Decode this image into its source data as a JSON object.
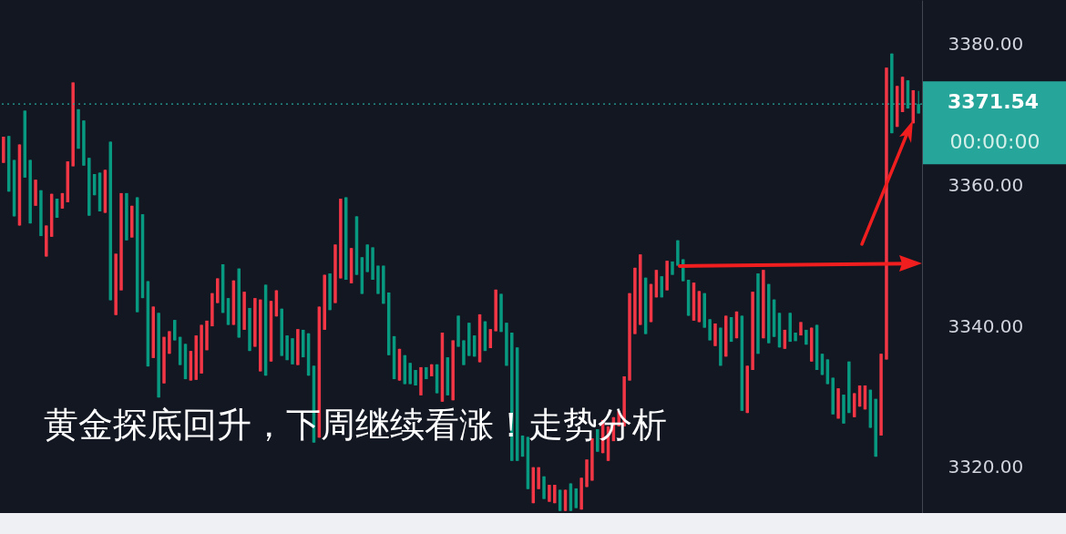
{
  "chart_data": {
    "type": "candlestick",
    "annotations": [
      "黄金探底回升，下周继续看涨！走势分析",
      "00:00:00"
    ],
    "ylim": [
      3313.5,
      3386.3
    ],
    "yticks": [
      {
        "value": 3320,
        "label": "3320.00"
      },
      {
        "value": 3340,
        "label": "3340.00"
      },
      {
        "value": 3360,
        "label": "3360.00"
      },
      {
        "value": 3380,
        "label": "3380.00"
      }
    ],
    "tick_labels": "y",
    "ref_lines": [
      {
        "axis": "y",
        "value": 3371.54,
        "label": "3371.54",
        "color": "#26a69a",
        "line_style": "dotted"
      }
    ],
    "categories": [
      null,
      null,
      null,
      null,
      null,
      null,
      null,
      null,
      null,
      null,
      null,
      null,
      null,
      null,
      null,
      null,
      null,
      null,
      null,
      null,
      null,
      null,
      null,
      null,
      null,
      null,
      null,
      null,
      null,
      null,
      null,
      null,
      null,
      null,
      null,
      null,
      null,
      null,
      null,
      null,
      null,
      null,
      null,
      null,
      null,
      null,
      null,
      null,
      null,
      null,
      null,
      null,
      null,
      null,
      null,
      null,
      null,
      null,
      null,
      null,
      null,
      null,
      null,
      null,
      null,
      null,
      null,
      null,
      null,
      null,
      null,
      null,
      null,
      null,
      null,
      null,
      null,
      null,
      null,
      null,
      null,
      null,
      null,
      null,
      null,
      null,
      null,
      null,
      null,
      null,
      null,
      null,
      null,
      null,
      null,
      null,
      null,
      null,
      null,
      null,
      null,
      null,
      null,
      null,
      null,
      null,
      null,
      null,
      null,
      null,
      null,
      null,
      null,
      null,
      null,
      null,
      null,
      null,
      null,
      null,
      null,
      null,
      null,
      null,
      null,
      null,
      null,
      null,
      null,
      null,
      null,
      null,
      null,
      null,
      null,
      null,
      null,
      null,
      null,
      null,
      null,
      null,
      null,
      null,
      null,
      null,
      null,
      null,
      null,
      null,
      null,
      null,
      null,
      null,
      null,
      null,
      null,
      null,
      null,
      null,
      null,
      null,
      null,
      null,
      null,
      null,
      null,
      null,
      null,
      null,
      null,
      null
    ],
    "ohlc": [
      [
        3366.9,
        3366.9,
        3363.2,
        3363.2
      ],
      [
        3359.1,
        3367.0,
        3359.1,
        3367.0
      ],
      [
        3355.6,
        3363.6,
        3355.6,
        3363.6
      ],
      [
        3365.8,
        3365.8,
        3354.3,
        3354.3
      ],
      [
        3361.1,
        3370.6,
        3361.1,
        3370.6
      ],
      [
        3354.6,
        3363.6,
        3354.6,
        3363.6
      ],
      [
        3360.8,
        3360.8,
        3357.1,
        3357.1
      ],
      [
        3352.8,
        3359.3,
        3352.8,
        3359.3
      ],
      [
        3354.3,
        3354.3,
        3349.9,
        3349.9
      ],
      [
        3358.8,
        3358.8,
        3352.7,
        3352.7
      ],
      [
        3355.4,
        3358.1,
        3355.4,
        3358.1
      ],
      [
        3358.9,
        3358.9,
        3356.7,
        3356.7
      ],
      [
        3363.4,
        3363.4,
        3357.6,
        3357.6
      ],
      [
        3374.6,
        3374.6,
        3362.7,
        3362.7
      ],
      [
        3365.2,
        3370.8,
        3365.2,
        3370.8
      ],
      [
        3362.8,
        3369.2,
        3362.8,
        3369.2
      ],
      [
        3355.7,
        3363.9,
        3355.7,
        3363.9
      ],
      [
        3358.6,
        3361.6,
        3358.6,
        3361.6
      ],
      [
        3356.3,
        3361.8,
        3356.3,
        3361.8
      ],
      [
        3362.2,
        3362.2,
        3356.1,
        3356.1
      ],
      [
        3343.7,
        3366.2,
        3343.7,
        3366.2
      ],
      [
        3350.3,
        3350.3,
        3341.6,
        3341.6
      ],
      [
        3358.9,
        3358.9,
        3345.1,
        3345.1
      ],
      [
        3352.2,
        3358.9,
        3352.2,
        3358.9
      ],
      [
        3357.1,
        3357.1,
        3352.6,
        3352.6
      ],
      [
        3342.0,
        3358.3,
        3342.0,
        3358.3
      ],
      [
        3344.0,
        3355.9,
        3344.0,
        3355.9
      ],
      [
        3334.3,
        3346.4,
        3334.3,
        3346.4
      ],
      [
        3342.8,
        3342.8,
        3335.5,
        3335.5
      ],
      [
        3329.9,
        3341.9,
        3329.9,
        3341.9
      ],
      [
        3338.5,
        3338.5,
        3331.9,
        3331.9
      ],
      [
        3339.3,
        3339.3,
        3336.1,
        3336.1
      ],
      [
        3338.0,
        3340.9,
        3338.0,
        3340.9
      ],
      [
        3334.5,
        3338.5,
        3334.5,
        3338.5
      ],
      [
        3332.5,
        3337.5,
        3332.5,
        3337.5
      ],
      [
        3336.5,
        3336.5,
        3332.3,
        3332.3
      ],
      [
        3338.7,
        3338.7,
        3332.4,
        3332.4
      ],
      [
        3340.2,
        3340.2,
        3333.3,
        3333.3
      ],
      [
        3340.8,
        3340.8,
        3336.6,
        3336.6
      ],
      [
        3344.7,
        3344.7,
        3340.0,
        3340.0
      ],
      [
        3346.8,
        3346.8,
        3343.3,
        3343.3
      ],
      [
        3341.9,
        3348.8,
        3341.9,
        3348.8
      ],
      [
        3340.2,
        3344.0,
        3340.2,
        3344.0
      ],
      [
        3346.5,
        3346.5,
        3340.2,
        3340.2
      ],
      [
        3338.4,
        3348.2,
        3338.4,
        3348.2
      ],
      [
        3344.9,
        3344.9,
        3339.5,
        3339.5
      ],
      [
        3336.5,
        3342.6,
        3336.5,
        3342.6
      ],
      [
        3344.0,
        3344.0,
        3337.1,
        3337.1
      ],
      [
        3343.8,
        3343.8,
        3333.6,
        3333.6
      ],
      [
        3333.0,
        3345.9,
        3333.0,
        3345.9
      ],
      [
        3343.6,
        3343.6,
        3335.0,
        3335.0
      ],
      [
        3345.1,
        3345.1,
        3341.4,
        3341.4
      ],
      [
        3335.8,
        3342.5,
        3335.8,
        3342.5
      ],
      [
        3335.2,
        3338.7,
        3335.2,
        3338.7
      ],
      [
        3334.6,
        3338.3,
        3334.6,
        3338.3
      ],
      [
        3339.6,
        3339.6,
        3334.5,
        3334.5
      ],
      [
        3335.6,
        3339.5,
        3335.6,
        3339.5
      ],
      [
        3333.0,
        3339.0,
        3333.0,
        3339.0
      ],
      [
        3323.5,
        3334.4,
        3323.5,
        3334.4
      ],
      [
        3342.8,
        3342.8,
        3324.2,
        3324.2
      ],
      [
        3347.3,
        3347.3,
        3339.5,
        3339.5
      ],
      [
        3342.3,
        3347.5,
        3342.3,
        3347.5
      ],
      [
        3351.6,
        3351.6,
        3343.3,
        3343.3
      ],
      [
        3358.1,
        3358.1,
        3346.8,
        3346.8
      ],
      [
        3346.6,
        3358.3,
        3346.6,
        3358.3
      ],
      [
        3351.1,
        3351.1,
        3346.1,
        3346.1
      ],
      [
        3347.3,
        3355.6,
        3347.3,
        3355.6
      ],
      [
        3344.6,
        3349.8,
        3344.6,
        3349.8
      ],
      [
        3347.7,
        3351.6,
        3347.7,
        3351.6
      ],
      [
        3346.6,
        3351.2,
        3346.6,
        3351.2
      ],
      [
        3344.6,
        3348.6,
        3344.6,
        3348.6
      ],
      [
        3343.2,
        3348.6,
        3343.2,
        3348.6
      ],
      [
        3335.9,
        3344.8,
        3335.9,
        3344.8
      ],
      [
        3332.5,
        3338.6,
        3332.5,
        3338.6
      ],
      [
        3336.8,
        3336.8,
        3332.3,
        3332.3
      ],
      [
        3331.8,
        3335.9,
        3331.8,
        3335.9
      ],
      [
        3331.8,
        3334.8,
        3331.8,
        3334.8
      ],
      [
        3331.6,
        3333.8,
        3331.6,
        3333.8
      ],
      [
        3334.2,
        3334.2,
        3330.2,
        3330.2
      ],
      [
        3332.5,
        3334.2,
        3332.5,
        3334.2
      ],
      [
        3334.6,
        3334.6,
        3332.9,
        3332.9
      ],
      [
        3330.5,
        3334.6,
        3330.5,
        3334.6
      ],
      [
        3339.1,
        3339.1,
        3329.3,
        3329.3
      ],
      [
        3330.2,
        3335.6,
        3330.2,
        3335.6
      ],
      [
        3338.0,
        3338.0,
        3329.5,
        3329.5
      ],
      [
        3337.1,
        3341.5,
        3337.1,
        3341.5
      ],
      [
        3334.5,
        3338.0,
        3334.5,
        3338.0
      ],
      [
        3335.8,
        3340.5,
        3335.8,
        3340.5
      ],
      [
        3335.7,
        3338.7,
        3335.7,
        3338.7
      ],
      [
        3341.7,
        3341.7,
        3334.9,
        3334.9
      ],
      [
        3336.5,
        3340.7,
        3336.5,
        3340.7
      ],
      [
        3339.6,
        3339.6,
        3336.9,
        3336.9
      ],
      [
        3345.2,
        3345.2,
        3339.3,
        3339.3
      ],
      [
        3339.2,
        3344.6,
        3339.2,
        3344.6
      ],
      [
        3334.4,
        3340.5,
        3334.4,
        3340.5
      ],
      [
        3320.9,
        3339.1,
        3320.9,
        3339.1
      ],
      [
        3320.9,
        3337.0,
        3320.9,
        3337.0
      ],
      [
        3321.5,
        3324.5,
        3321.5,
        3324.5
      ],
      [
        3316.9,
        3324.3,
        3316.9,
        3324.3
      ],
      [
        3320.0,
        3320.0,
        3314.9,
        3314.9
      ],
      [
        3320.0,
        3320.0,
        3316.9,
        3316.9
      ],
      [
        3315.5,
        3318.7,
        3315.5,
        3318.7
      ],
      [
        3317.5,
        3317.5,
        3315.1,
        3315.1
      ],
      [
        3317.5,
        3317.5,
        3314.9,
        3314.9
      ],
      [
        3313.8,
        3316.8,
        3313.8,
        3316.8
      ],
      [
        3316.8,
        3316.8,
        3313.8,
        3313.8
      ],
      [
        3313.8,
        3317.7,
        3313.8,
        3317.7
      ],
      [
        3314.2,
        3317.0,
        3314.2,
        3317.0
      ],
      [
        3318.5,
        3318.5,
        3314.0,
        3314.0
      ],
      [
        3321.1,
        3321.1,
        3317.2,
        3317.2
      ],
      [
        3324.1,
        3324.1,
        3318.1,
        3318.1
      ],
      [
        3322.2,
        3325.4,
        3322.2,
        3325.4
      ],
      [
        3326.7,
        3326.7,
        3322.0,
        3322.0
      ],
      [
        3325.8,
        3325.8,
        3320.9,
        3320.9
      ],
      [
        3327.1,
        3327.1,
        3323.7,
        3323.7
      ],
      [
        3328.0,
        3328.0,
        3325.8,
        3325.8
      ],
      [
        3332.9,
        3332.9,
        3325.8,
        3325.8
      ],
      [
        3344.7,
        3344.7,
        3332.3,
        3332.3
      ],
      [
        3348.3,
        3348.3,
        3338.9,
        3338.9
      ],
      [
        3350.2,
        3350.2,
        3340.2,
        3340.2
      ],
      [
        3338.9,
        3346.9,
        3338.9,
        3346.9
      ],
      [
        3346.0,
        3346.0,
        3340.6,
        3340.6
      ],
      [
        3348.0,
        3348.0,
        3344.1,
        3344.1
      ],
      [
        3344.1,
        3347.1,
        3344.1,
        3347.1
      ],
      [
        3349.3,
        3349.3,
        3345.1,
        3345.1
      ],
      [
        3347.3,
        3349.2,
        3347.3,
        3349.2
      ],
      [
        3348.6,
        3352.2,
        3348.6,
        3352.2
      ],
      [
        3346.4,
        3349.5,
        3346.4,
        3349.5
      ],
      [
        3341.5,
        3346.6,
        3341.5,
        3346.6
      ],
      [
        3346.2,
        3346.2,
        3340.8,
        3340.8
      ],
      [
        3345.0,
        3345.0,
        3340.6,
        3340.6
      ],
      [
        3339.8,
        3344.7,
        3339.8,
        3344.7
      ],
      [
        3338.0,
        3341.0,
        3338.0,
        3341.0
      ],
      [
        3340.4,
        3340.4,
        3337.2,
        3337.2
      ],
      [
        3334.4,
        3339.8,
        3334.4,
        3339.8
      ],
      [
        3341.5,
        3341.5,
        3335.7,
        3335.7
      ],
      [
        3337.8,
        3341.3,
        3337.8,
        3341.3
      ],
      [
        3342.1,
        3342.1,
        3338.3,
        3338.3
      ],
      [
        3328.0,
        3341.5,
        3328.0,
        3341.5
      ],
      [
        3334.4,
        3334.4,
        3327.7,
        3327.7
      ],
      [
        3344.9,
        3344.9,
        3333.8,
        3333.8
      ],
      [
        3336.1,
        3347.5,
        3336.1,
        3347.5
      ],
      [
        3348.0,
        3348.0,
        3338.3,
        3338.3
      ],
      [
        3337.6,
        3346.0,
        3337.6,
        3346.0
      ],
      [
        3338.5,
        3343.8,
        3338.5,
        3343.8
      ],
      [
        3337.0,
        3341.9,
        3337.0,
        3341.9
      ],
      [
        3339.5,
        3339.5,
        3336.8,
        3336.8
      ],
      [
        3337.8,
        3341.9,
        3337.8,
        3341.9
      ],
      [
        3337.9,
        3339.1,
        3337.9,
        3339.1
      ],
      [
        3340.6,
        3340.6,
        3338.7,
        3338.7
      ],
      [
        3337.4,
        3339.5,
        3337.4,
        3339.5
      ],
      [
        3339.8,
        3339.8,
        3335.0,
        3335.0
      ],
      [
        3333.8,
        3340.2,
        3333.8,
        3340.2
      ],
      [
        3333.1,
        3336.1,
        3333.1,
        3336.1
      ],
      [
        3331.8,
        3335.3,
        3331.8,
        3335.3
      ],
      [
        3327.5,
        3332.7,
        3327.5,
        3332.7
      ],
      [
        3331.2,
        3331.2,
        3326.9,
        3326.9
      ],
      [
        3326.2,
        3330.3,
        3326.2,
        3330.3
      ],
      [
        3327.7,
        3335.0,
        3327.7,
        3335.0
      ],
      [
        3330.5,
        3330.5,
        3327.1,
        3327.1
      ],
      [
        3331.6,
        3331.6,
        3328.6,
        3328.6
      ],
      [
        3331.6,
        3331.6,
        3328.2,
        3328.2
      ],
      [
        3325.6,
        3331.0,
        3325.6,
        3331.0
      ],
      [
        3321.5,
        3329.7,
        3321.5,
        3329.7
      ],
      [
        3336.1,
        3336.1,
        3324.5,
        3324.5
      ],
      [
        3376.7,
        3376.7,
        3335.3,
        3335.3
      ],
      [
        3367.4,
        3378.7,
        3367.4,
        3378.7
      ],
      [
        3374.1,
        3374.1,
        3368.3,
        3368.3
      ],
      [
        3375.4,
        3375.4,
        3370.4,
        3370.4
      ],
      [
        3370.9,
        3374.9,
        3370.9,
        3374.9
      ],
      [
        3373.5,
        3373.5,
        3368.8,
        3368.8
      ],
      [
        3370.2,
        3373.4,
        3370.2,
        3371.54
      ]
    ]
  }
}
